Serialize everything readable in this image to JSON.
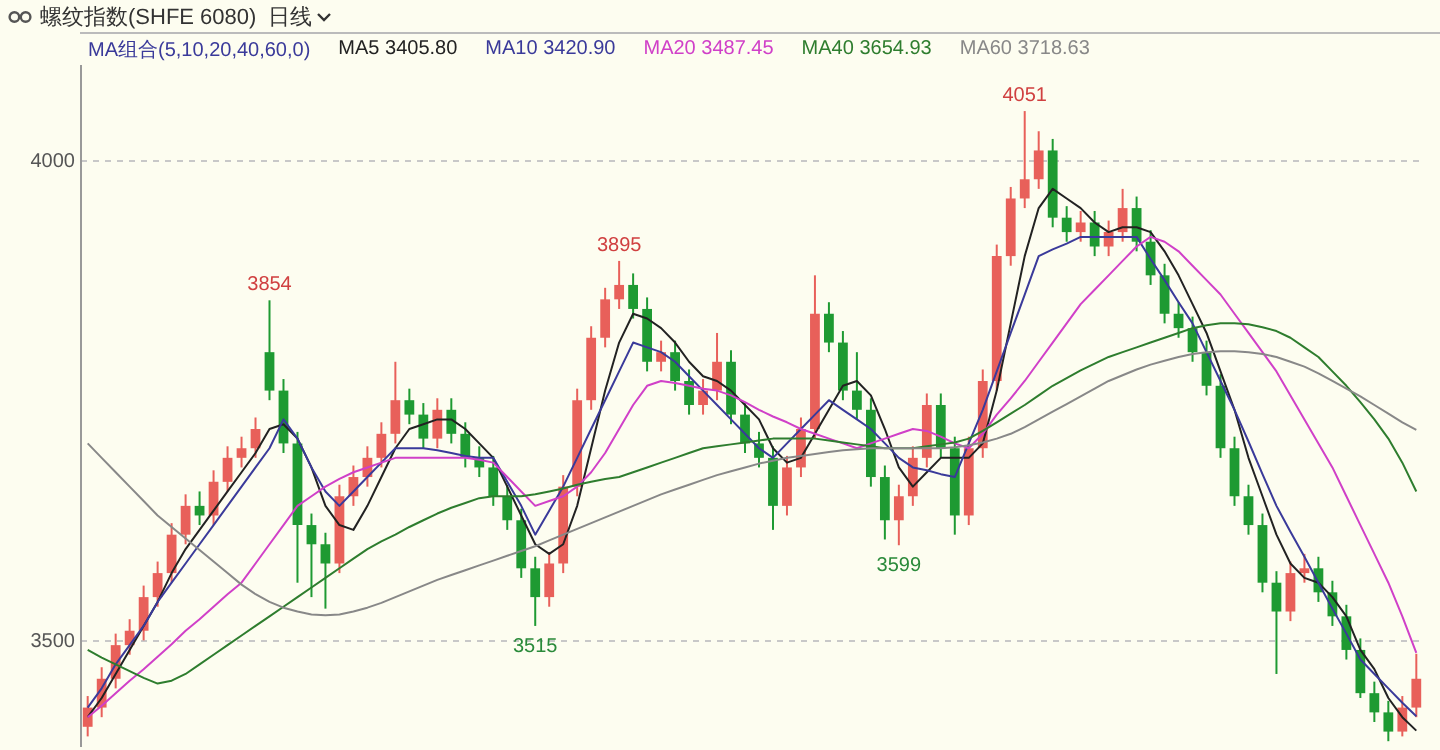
{
  "chart_data": {
    "type": "candlestick",
    "title": "螺纹指数(SHFE 6080)",
    "subtitle": "日线",
    "legend_title": "MA组合(5,10,20,40,60,0)",
    "legend": "top left",
    "grid": "y",
    "tick_labels": "y",
    "ylim": [
      3390,
      4100
    ],
    "yticks": [
      3500,
      4000
    ],
    "categories": [
      null,
      null,
      null,
      null,
      null,
      null,
      null,
      null,
      null,
      null,
      null,
      null,
      null,
      null,
      null,
      null,
      null,
      null,
      null,
      null,
      null,
      null,
      null,
      null,
      null,
      null,
      null,
      null,
      null,
      null,
      null,
      null,
      null,
      null,
      null,
      null,
      null,
      null,
      null,
      null,
      null,
      null,
      null,
      null,
      null,
      null,
      null,
      null,
      null,
      null,
      null,
      null,
      null,
      null,
      null,
      null,
      null,
      null,
      null,
      null,
      null,
      null,
      null,
      null,
      null,
      null,
      null,
      null,
      null,
      null,
      null,
      null,
      null,
      null,
      null,
      null,
      null,
      null,
      null,
      null,
      null,
      null,
      null,
      null,
      null,
      null,
      null,
      null,
      null,
      null,
      null,
      null,
      null,
      null,
      null,
      null
    ],
    "ohlc": [
      [
        3410,
        3442,
        3400,
        3430
      ],
      [
        3430,
        3472,
        3420,
        3460
      ],
      [
        3460,
        3507,
        3450,
        3495
      ],
      [
        3495,
        3522,
        3485,
        3510
      ],
      [
        3510,
        3557,
        3500,
        3545
      ],
      [
        3545,
        3582,
        3535,
        3570
      ],
      [
        3570,
        3622,
        3560,
        3610
      ],
      [
        3610,
        3652,
        3600,
        3640
      ],
      [
        3640,
        3655,
        3620,
        3630
      ],
      [
        3630,
        3677,
        3620,
        3665
      ],
      [
        3665,
        3702,
        3655,
        3690
      ],
      [
        3690,
        3712,
        3680,
        3700
      ],
      [
        3700,
        3732,
        3690,
        3720
      ],
      [
        3800,
        3854,
        3750,
        3760
      ],
      [
        3760,
        3772,
        3695,
        3705
      ],
      [
        3705,
        3717,
        3560,
        3620
      ],
      [
        3620,
        3632,
        3545,
        3600
      ],
      [
        3600,
        3612,
        3533,
        3580
      ],
      [
        3580,
        3662,
        3570,
        3650
      ],
      [
        3650,
        3682,
        3640,
        3670
      ],
      [
        3670,
        3702,
        3660,
        3690
      ],
      [
        3690,
        3727,
        3680,
        3715
      ],
      [
        3715,
        3790,
        3705,
        3750
      ],
      [
        3750,
        3762,
        3725,
        3735
      ],
      [
        3735,
        3747,
        3700,
        3710
      ],
      [
        3710,
        3752,
        3700,
        3740
      ],
      [
        3740,
        3752,
        3705,
        3715
      ],
      [
        3715,
        3727,
        3680,
        3690
      ],
      [
        3690,
        3702,
        3670,
        3680
      ],
      [
        3680,
        3692,
        3640,
        3650
      ],
      [
        3650,
        3662,
        3615,
        3625
      ],
      [
        3625,
        3637,
        3565,
        3575
      ],
      [
        3575,
        3587,
        3515,
        3545
      ],
      [
        3545,
        3592,
        3535,
        3580
      ],
      [
        3580,
        3672,
        3570,
        3660
      ],
      [
        3660,
        3762,
        3650,
        3750
      ],
      [
        3750,
        3827,
        3740,
        3815
      ],
      [
        3815,
        3867,
        3805,
        3855
      ],
      [
        3855,
        3895,
        3845,
        3870
      ],
      [
        3870,
        3882,
        3835,
        3845
      ],
      [
        3845,
        3857,
        3780,
        3790
      ],
      [
        3790,
        3812,
        3780,
        3800
      ],
      [
        3800,
        3812,
        3760,
        3770
      ],
      [
        3770,
        3782,
        3735,
        3745
      ],
      [
        3745,
        3772,
        3735,
        3760
      ],
      [
        3760,
        3820,
        3750,
        3790
      ],
      [
        3790,
        3802,
        3725,
        3735
      ],
      [
        3735,
        3747,
        3695,
        3705
      ],
      [
        3705,
        3717,
        3680,
        3690
      ],
      [
        3690,
        3702,
        3615,
        3640
      ],
      [
        3640,
        3692,
        3630,
        3680
      ],
      [
        3680,
        3732,
        3670,
        3720
      ],
      [
        3720,
        3880,
        3710,
        3840
      ],
      [
        3840,
        3852,
        3800,
        3810
      ],
      [
        3810,
        3822,
        3750,
        3760
      ],
      [
        3760,
        3800,
        3730,
        3740
      ],
      [
        3740,
        3752,
        3660,
        3670
      ],
      [
        3670,
        3682,
        3605,
        3625
      ],
      [
        3625,
        3662,
        3599,
        3650
      ],
      [
        3650,
        3702,
        3640,
        3690
      ],
      [
        3690,
        3757,
        3680,
        3745
      ],
      [
        3745,
        3757,
        3690,
        3700
      ],
      [
        3700,
        3712,
        3610,
        3630
      ],
      [
        3630,
        3712,
        3620,
        3700
      ],
      [
        3700,
        3782,
        3690,
        3770
      ],
      [
        3770,
        3912,
        3760,
        3900
      ],
      [
        3900,
        3972,
        3890,
        3960
      ],
      [
        3960,
        4051,
        3950,
        3980
      ],
      [
        3980,
        4030,
        3970,
        4010
      ],
      [
        4010,
        4022,
        3930,
        3940
      ],
      [
        3940,
        3952,
        3915,
        3925
      ],
      [
        3925,
        3947,
        3915,
        3935
      ],
      [
        3935,
        3947,
        3900,
        3910
      ],
      [
        3910,
        3937,
        3900,
        3925
      ],
      [
        3925,
        3970,
        3915,
        3950
      ],
      [
        3950,
        3962,
        3905,
        3915
      ],
      [
        3915,
        3927,
        3870,
        3880
      ],
      [
        3880,
        3892,
        3830,
        3840
      ],
      [
        3840,
        3852,
        3815,
        3825
      ],
      [
        3825,
        3837,
        3790,
        3800
      ],
      [
        3800,
        3812,
        3755,
        3765
      ],
      [
        3765,
        3777,
        3690,
        3700
      ],
      [
        3700,
        3712,
        3640,
        3650
      ],
      [
        3650,
        3662,
        3610,
        3620
      ],
      [
        3620,
        3632,
        3550,
        3560
      ],
      [
        3560,
        3572,
        3465,
        3530
      ],
      [
        3530,
        3582,
        3520,
        3570
      ],
      [
        3570,
        3590,
        3560,
        3575
      ],
      [
        3575,
        3587,
        3540,
        3550
      ],
      [
        3550,
        3562,
        3515,
        3525
      ],
      [
        3525,
        3537,
        3480,
        3490
      ],
      [
        3490,
        3502,
        3440,
        3445
      ],
      [
        3445,
        3457,
        3415,
        3425
      ],
      [
        3425,
        3437,
        3395,
        3405
      ],
      [
        3405,
        3442,
        3400,
        3430
      ],
      [
        3430,
        3486,
        3420,
        3460
      ]
    ],
    "colors": [
      "#e8605a",
      "#e8605a",
      "#e8605a",
      "#e8605a",
      "#e8605a",
      "#e8605a",
      "#e8605a",
      "#e8605a",
      "#1e9a32",
      "#e8605a",
      "#e8605a",
      "#e8605a",
      "#e8605a",
      "#1e9a32",
      "#1e9a32",
      "#1e9a32",
      "#1e9a32",
      "#1e9a32",
      "#e8605a",
      "#e8605a",
      "#e8605a",
      "#e8605a",
      "#e8605a",
      "#1e9a32",
      "#1e9a32",
      "#e8605a",
      "#1e9a32",
      "#1e9a32",
      "#1e9a32",
      "#1e9a32",
      "#1e9a32",
      "#1e9a32",
      "#1e9a32",
      "#e8605a",
      "#e8605a",
      "#e8605a",
      "#e8605a",
      "#e8605a",
      "#e8605a",
      "#1e9a32",
      "#1e9a32",
      "#e8605a",
      "#1e9a32",
      "#1e9a32",
      "#e8605a",
      "#e8605a",
      "#1e9a32",
      "#1e9a32",
      "#1e9a32",
      "#1e9a32",
      "#e8605a",
      "#e8605a",
      "#e8605a",
      "#1e9a32",
      "#1e9a32",
      "#1e9a32",
      "#1e9a32",
      "#1e9a32",
      "#e8605a",
      "#e8605a",
      "#e8605a",
      "#1e9a32",
      "#1e9a32",
      "#e8605a",
      "#e8605a",
      "#e8605a",
      "#e8605a",
      "#e8605a",
      "#e8605a",
      "#1e9a32",
      "#1e9a32",
      "#e8605a",
      "#1e9a32",
      "#e8605a",
      "#e8605a",
      "#1e9a32",
      "#1e9a32",
      "#1e9a32",
      "#1e9a32",
      "#1e9a32",
      "#1e9a32",
      "#1e9a32",
      "#1e9a32",
      "#1e9a32",
      "#1e9a32",
      "#1e9a32",
      "#e8605a",
      "#e8605a",
      "#1e9a32",
      "#1e9a32",
      "#1e9a32",
      "#1e9a32",
      "#1e9a32",
      "#1e9a32",
      "#e8605a",
      "#e8605a"
    ],
    "series": [
      {
        "name": "MA5 3405.80",
        "type": "line",
        "color": "#222222",
        "values": [
          3420,
          3440,
          3465,
          3490,
          3515,
          3540,
          3570,
          3595,
          3615,
          3635,
          3655,
          3675,
          3695,
          3720,
          3725,
          3710,
          3680,
          3640,
          3620,
          3615,
          3640,
          3670,
          3700,
          3720,
          3725,
          3730,
          3730,
          3720,
          3705,
          3690,
          3660,
          3630,
          3600,
          3590,
          3600,
          3640,
          3700,
          3760,
          3810,
          3840,
          3835,
          3825,
          3810,
          3790,
          3775,
          3770,
          3760,
          3745,
          3730,
          3700,
          3685,
          3690,
          3715,
          3740,
          3765,
          3770,
          3755,
          3720,
          3680,
          3660,
          3675,
          3690,
          3690,
          3690,
          3705,
          3760,
          3830,
          3900,
          3950,
          3970,
          3960,
          3950,
          3935,
          3925,
          3930,
          3930,
          3925,
          3905,
          3880,
          3850,
          3820,
          3780,
          3740,
          3690,
          3650,
          3610,
          3580,
          3565,
          3560,
          3545,
          3525,
          3490,
          3470,
          3440,
          3420,
          3406
        ]
      },
      {
        "name": "MA10 3420.90",
        "type": "line",
        "color": "#3a3a9a",
        "values": [
          3430,
          3450,
          3475,
          3495,
          3515,
          3540,
          3560,
          3580,
          3600,
          3620,
          3640,
          3660,
          3680,
          3700,
          3730,
          3710,
          3680,
          3655,
          3640,
          3655,
          3670,
          3685,
          3700,
          3700,
          3700,
          3698,
          3695,
          3692,
          3690,
          3690,
          3665,
          3640,
          3610,
          3635,
          3660,
          3690,
          3720,
          3750,
          3780,
          3810,
          3805,
          3800,
          3790,
          3775,
          3760,
          3745,
          3730,
          3715,
          3700,
          3690,
          3705,
          3720,
          3735,
          3750,
          3740,
          3730,
          3720,
          3705,
          3690,
          3680,
          3677,
          3673,
          3670,
          3705,
          3740,
          3780,
          3820,
          3860,
          3900,
          3907,
          3913,
          3920,
          3920,
          3920,
          3920,
          3920,
          3897,
          3875,
          3852,
          3830,
          3800,
          3770,
          3740,
          3707,
          3673,
          3640,
          3613,
          3587,
          3560,
          3533,
          3507,
          3480,
          3465,
          3450,
          3435,
          3421
        ]
      },
      {
        "name": "MA20 3487.45",
        "type": "line",
        "color": "#d040c8",
        "values": [
          3420,
          3432,
          3445,
          3458,
          3470,
          3483,
          3496,
          3510,
          3522,
          3535,
          3548,
          3560,
          3580,
          3600,
          3620,
          3640,
          3650,
          3660,
          3668,
          3675,
          3680,
          3685,
          3690,
          3690,
          3690,
          3690,
          3690,
          3690,
          3688,
          3685,
          3670,
          3655,
          3640,
          3645,
          3650,
          3660,
          3675,
          3695,
          3720,
          3745,
          3765,
          3770,
          3768,
          3765,
          3762,
          3760,
          3755,
          3748,
          3740,
          3733,
          3727,
          3720,
          3715,
          3710,
          3705,
          3700,
          3705,
          3710,
          3715,
          3720,
          3718,
          3712,
          3705,
          3700,
          3715,
          3735,
          3752,
          3770,
          3790,
          3810,
          3830,
          3850,
          3865,
          3880,
          3895,
          3910,
          3920,
          3915,
          3905,
          3890,
          3875,
          3860,
          3840,
          3820,
          3800,
          3780,
          3755,
          3730,
          3705,
          3680,
          3650,
          3620,
          3590,
          3560,
          3525,
          3487
        ]
      },
      {
        "name": "MA40 3654.93",
        "type": "line",
        "color": "#2e7d2e",
        "values": [
          3490,
          3482,
          3475,
          3468,
          3461,
          3455,
          3458,
          3465,
          3475,
          3485,
          3495,
          3505,
          3515,
          3525,
          3535,
          3545,
          3555,
          3565,
          3575,
          3585,
          3595,
          3603,
          3610,
          3618,
          3625,
          3632,
          3638,
          3643,
          3648,
          3650,
          3650,
          3650,
          3652,
          3655,
          3658,
          3662,
          3665,
          3668,
          3670,
          3675,
          3680,
          3685,
          3690,
          3695,
          3700,
          3702,
          3704,
          3706,
          3708,
          3710,
          3710,
          3710,
          3710,
          3708,
          3706,
          3704,
          3702,
          3700,
          3700,
          3700,
          3702,
          3704,
          3706,
          3710,
          3718,
          3727,
          3736,
          3745,
          3755,
          3765,
          3773,
          3781,
          3788,
          3795,
          3800,
          3805,
          3810,
          3815,
          3820,
          3825,
          3828,
          3830,
          3830,
          3829,
          3826,
          3822,
          3815,
          3805,
          3795,
          3780,
          3765,
          3748,
          3730,
          3710,
          3685,
          3655
        ]
      },
      {
        "name": "MA60 3718.63",
        "type": "line",
        "color": "#888888",
        "values": [
          3705,
          3690,
          3675,
          3660,
          3645,
          3630,
          3618,
          3606,
          3594,
          3582,
          3570,
          3558,
          3548,
          3540,
          3534,
          3530,
          3527,
          3526,
          3527,
          3530,
          3534,
          3539,
          3545,
          3551,
          3557,
          3563,
          3568,
          3573,
          3578,
          3583,
          3588,
          3593,
          3598,
          3604,
          3610,
          3616,
          3622,
          3628,
          3634,
          3640,
          3646,
          3652,
          3657,
          3662,
          3667,
          3672,
          3676,
          3680,
          3684,
          3687,
          3690,
          3692,
          3694,
          3696,
          3698,
          3699,
          3700,
          3700,
          3700,
          3700,
          3700,
          3700,
          3701,
          3703,
          3706,
          3710,
          3715,
          3722,
          3730,
          3738,
          3746,
          3754,
          3762,
          3770,
          3776,
          3782,
          3787,
          3791,
          3795,
          3798,
          3800,
          3801,
          3801,
          3800,
          3798,
          3795,
          3790,
          3785,
          3778,
          3770,
          3762,
          3754,
          3745,
          3736,
          3727,
          3719
        ]
      }
    ],
    "annotations": [
      {
        "text": "3854",
        "y": 3854
      },
      {
        "text": "3895",
        "y": 3895
      },
      {
        "text": "4051",
        "y": 4051
      },
      {
        "text": "3515",
        "y": 3515
      },
      {
        "text": "3599",
        "y": 3599
      }
    ]
  }
}
